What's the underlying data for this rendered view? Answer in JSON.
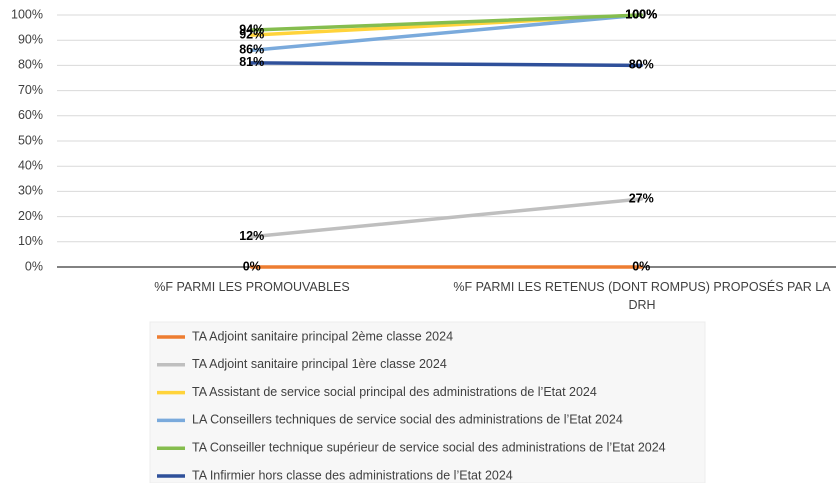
{
  "chart_data": {
    "type": "line",
    "categories": [
      "%F PARMI LES PROMOUVABLES",
      "%F PARMI LES RETENUS (DONT ROMPUS) PROPOSÉS PAR LA DRH"
    ],
    "series": [
      {
        "name": "TA Adjoint sanitaire principal 2ème classe 2024",
        "color": "#ed7d31",
        "values": [
          0,
          0
        ],
        "value_labels": [
          "0%",
          "0%"
        ]
      },
      {
        "name": "TA Adjoint sanitaire principal 1ère classe 2024",
        "color": "#bfbfbf",
        "values": [
          12,
          27
        ],
        "value_labels": [
          "12%",
          "27%"
        ]
      },
      {
        "name": "TA Assistant de service social principal des administrations de l’Etat 2024",
        "color": "#ffd33a",
        "values": [
          92,
          100
        ],
        "value_labels": [
          "92%",
          "100%"
        ]
      },
      {
        "name": "LA Conseillers techniques de service social des administrations de l’Etat 2024",
        "color": "#7aaadc",
        "values": [
          86,
          100
        ],
        "value_labels": [
          "86%",
          "100%"
        ]
      },
      {
        "name": "TA Conseiller technique supérieur de service social des administrations de l’Etat 2024",
        "color": "#85bd4e",
        "values": [
          94,
          100
        ],
        "value_labels": [
          "94%",
          "100%"
        ]
      },
      {
        "name": "TA Infirmier hors classe des administrations de l’Etat 2024",
        "color": "#2f509a",
        "values": [
          81,
          80
        ],
        "value_labels": [
          "81%",
          "80%"
        ]
      }
    ],
    "ylim": [
      0,
      100
    ],
    "yticks": [
      {
        "value": 0,
        "label": "0%"
      },
      {
        "value": 10,
        "label": "10%"
      },
      {
        "value": 20,
        "label": "20%"
      },
      {
        "value": 30,
        "label": "30%"
      },
      {
        "value": 40,
        "label": "40%"
      },
      {
        "value": 50,
        "label": "50%"
      },
      {
        "value": 60,
        "label": "60%"
      },
      {
        "value": 70,
        "label": "70%"
      },
      {
        "value": 80,
        "label": "80%"
      },
      {
        "value": 90,
        "label": "90%"
      },
      {
        "value": 100,
        "label": "100%"
      }
    ],
    "grid": true
  }
}
